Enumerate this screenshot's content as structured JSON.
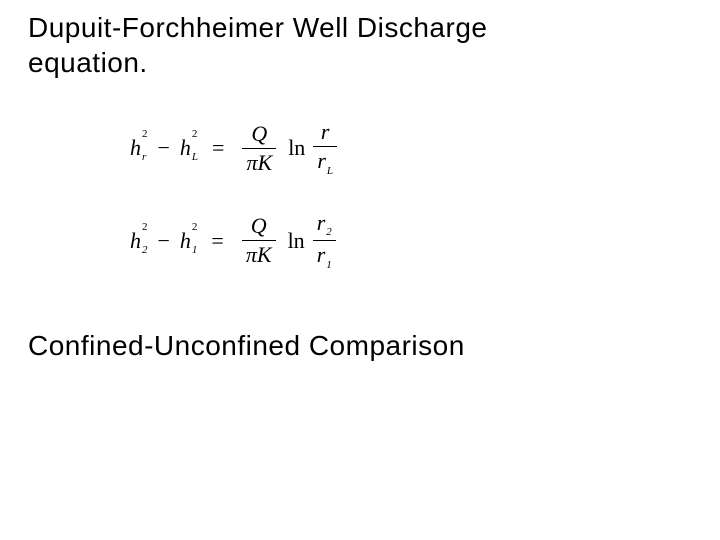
{
  "colors": {
    "background": "#ffffff",
    "text": "#000000",
    "rule": "#000000"
  },
  "typography": {
    "heading_font": "Arial",
    "heading_size_pt": 21,
    "equation_font": "Times New Roman",
    "equation_size_pt": 17,
    "subscript_size_pt": 9
  },
  "title": {
    "line1": "Dupuit-Forchheimer Well Discharge",
    "line2": "equation."
  },
  "equations": {
    "eq1": {
      "lhs": {
        "t1": {
          "base": "h",
          "sub": "r",
          "sup": "2"
        },
        "minus": "−",
        "t2": {
          "base": "h",
          "sub": "L",
          "sup": "2"
        }
      },
      "eq": "=",
      "rhs": {
        "frac1": {
          "num": "Q",
          "den_pi": "π",
          "den_K": "K"
        },
        "ln": "ln",
        "frac2": {
          "num_base": "r",
          "num_sub": "",
          "den_base": "r",
          "den_sub": "L"
        }
      }
    },
    "eq2": {
      "lhs": {
        "t1": {
          "base": "h",
          "sub": "2",
          "sup": "2"
        },
        "minus": "−",
        "t2": {
          "base": "h",
          "sub": "1",
          "sup": "2"
        }
      },
      "eq": "=",
      "rhs": {
        "frac1": {
          "num": "Q",
          "den_pi": "π",
          "den_K": "K"
        },
        "ln": "ln",
        "frac2": {
          "num_base": "r",
          "num_sub": "2",
          "den_base": "r",
          "den_sub": "1"
        }
      }
    }
  },
  "subtitle": "Confined-Unconfined Comparison"
}
